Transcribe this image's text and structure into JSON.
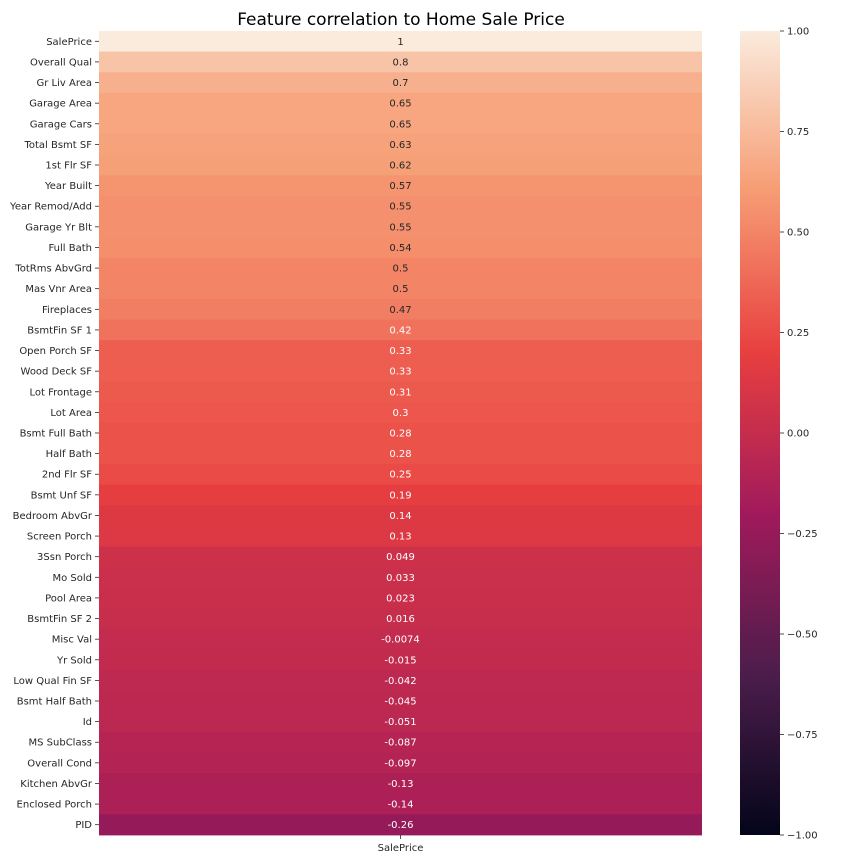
{
  "chart_data": {
    "type": "heatmap",
    "title": "Feature correlation to Home Sale Price",
    "x_categories": [
      "SalePrice"
    ],
    "y_categories": [
      "SalePrice",
      "Overall Qual",
      "Gr Liv Area",
      "Garage Area",
      "Garage Cars",
      "Total Bsmt SF",
      "1st Flr SF",
      "Year Built",
      "Year Remod/Add",
      "Garage Yr Blt",
      "Full Bath",
      "TotRms AbvGrd",
      "Mas Vnr Area",
      "Fireplaces",
      "BsmtFin SF 1",
      "Open Porch SF",
      "Wood Deck SF",
      "Lot Frontage",
      "Lot Area",
      "Bsmt Full Bath",
      "Half Bath",
      "2nd Flr SF",
      "Bsmt Unf SF",
      "Bedroom AbvGr",
      "Screen Porch",
      "3Ssn Porch",
      "Mo Sold",
      "Pool Area",
      "BsmtFin SF 2",
      "Misc Val",
      "Yr Sold",
      "Low Qual Fin SF",
      "Bsmt Half Bath",
      "Id",
      "MS SubClass",
      "Overall Cond",
      "Kitchen AbvGr",
      "Enclosed Porch",
      "PID"
    ],
    "values": [
      1,
      0.8,
      0.7,
      0.65,
      0.65,
      0.63,
      0.62,
      0.57,
      0.55,
      0.55,
      0.54,
      0.5,
      0.5,
      0.47,
      0.42,
      0.33,
      0.33,
      0.31,
      0.3,
      0.28,
      0.28,
      0.25,
      0.19,
      0.14,
      0.13,
      0.049,
      0.033,
      0.023,
      0.016,
      -0.0074,
      -0.015,
      -0.042,
      -0.045,
      -0.051,
      -0.087,
      -0.097,
      -0.13,
      -0.14,
      -0.26
    ],
    "value_labels": [
      "1",
      "0.8",
      "0.7",
      "0.65",
      "0.65",
      "0.63",
      "0.62",
      "0.57",
      "0.55",
      "0.55",
      "0.54",
      "0.5",
      "0.5",
      "0.47",
      "0.42",
      "0.33",
      "0.33",
      "0.31",
      "0.3",
      "0.28",
      "0.28",
      "0.25",
      "0.19",
      "0.14",
      "0.13",
      "0.049",
      "0.033",
      "0.023",
      "0.016",
      "-0.0074",
      "-0.015",
      "-0.042",
      "-0.045",
      "-0.051",
      "-0.087",
      "-0.097",
      "-0.13",
      "-0.14",
      "-0.26"
    ],
    "colorbar": {
      "range": [
        -1,
        1
      ],
      "ticks": [
        1,
        0.75,
        0.5,
        0.25,
        0,
        -0.25,
        -0.5,
        -0.75,
        -1
      ],
      "tick_labels": [
        "1.00",
        "0.75",
        "0.50",
        "0.25",
        "0.00",
        "−0.25",
        "−0.50",
        "−0.75",
        "−1.00"
      ],
      "colormap": "rocket",
      "stops": [
        "#03051a",
        "#4c1d4b",
        "#a11a5b",
        "#e83f3f",
        "#f69c73",
        "#faebdd"
      ]
    },
    "annotation_text_color_light": "#ffffff",
    "annotation_text_color_dark": "#262626",
    "grid": false,
    "legend": "none"
  }
}
